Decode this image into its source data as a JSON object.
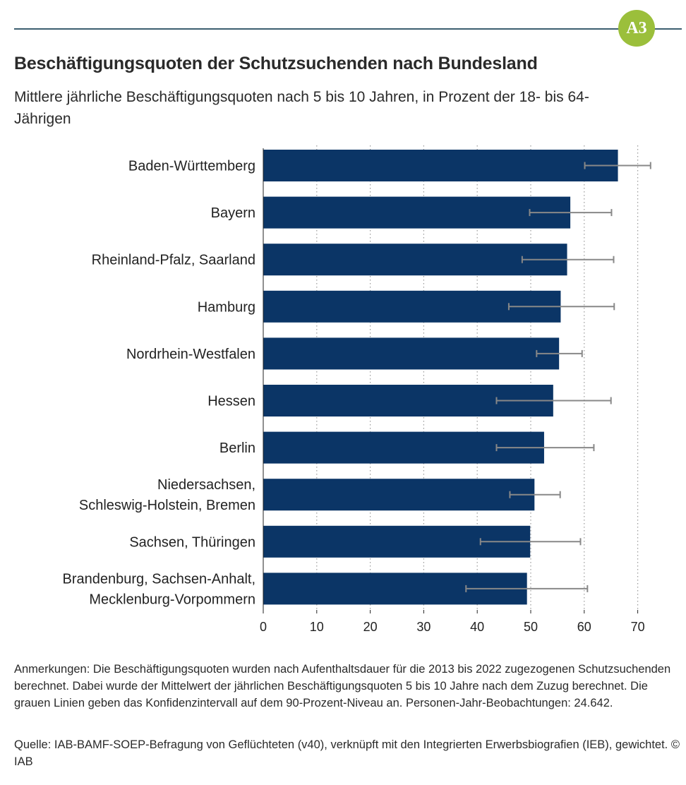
{
  "badge": "A3",
  "chart_data": {
    "type": "bar",
    "orientation": "horizontal",
    "title": "Beschäftigungsquoten der Schutzsuchenden nach Bundesland",
    "subtitle": "Mittlere jährliche Beschäftigungsquoten nach 5 bis 10 Jahren, in Prozent der 18- bis 64-Jährigen",
    "categories": [
      [
        "Baden-Württemberg"
      ],
      [
        "Bayern"
      ],
      [
        "Rheinland-Pfalz, Saarland"
      ],
      [
        "Hamburg"
      ],
      [
        "Nordrhein-Westfalen"
      ],
      [
        "Hessen"
      ],
      [
        "Berlin"
      ],
      [
        "Niedersachsen,",
        "Schleswig-Holstein, Bremen"
      ],
      [
        "Sachsen, Thüringen"
      ],
      [
        "Brandenburg, Sachsen-Anhalt,",
        "Mecklenburg-Vorpommern"
      ]
    ],
    "values": [
      66.3,
      57.4,
      56.8,
      55.6,
      55.3,
      54.2,
      52.5,
      50.7,
      49.9,
      49.3
    ],
    "ci_low": [
      60.1,
      49.8,
      48.4,
      45.9,
      51.1,
      43.6,
      43.6,
      46.1,
      40.6,
      37.9
    ],
    "ci_high": [
      72.4,
      65.1,
      65.5,
      65.6,
      59.6,
      65.0,
      61.8,
      55.5,
      59.3,
      60.6
    ],
    "xlim": [
      0,
      70
    ],
    "xticks": [
      "0",
      "10",
      "20",
      "30",
      "40",
      "50",
      "60",
      "70"
    ],
    "grid": "vertical dotted",
    "bar_color": "#0b3566",
    "errorbar_color": "#888888"
  },
  "notes": "Anmerkungen: Die Beschäftigungsquoten wurden nach Aufenthaltsdauer für die 2013 bis 2022 zugezogenen Schutzsuchenden berechnet. Dabei wurde der Mittelwert der jährlichen Beschäftigungsquoten 5 bis 10 Jahre nach dem Zuzug berechnet. Die grauen Linien geben das Konfidenzintervall auf dem 90-Prozent-Niveau an. Personen-Jahr-Beobachtungen: 24.642.",
  "source": "Quelle: IAB-BAMF-SOEP-Befragung von Geflüchteten (v40), verknüpft mit den Integrierten Erwerbsbiografien (IEB), gewichtet.  © IAB"
}
